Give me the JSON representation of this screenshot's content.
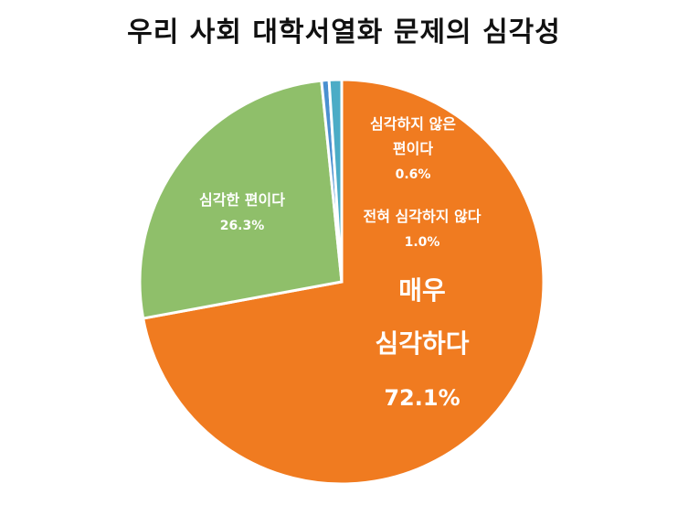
{
  "chart_data": {
    "type": "pie",
    "title": "우리 사회 대학서열화 문제의 심각성",
    "slices": [
      {
        "label_lines": [
          "매우",
          "심각하다"
        ],
        "percent_label": "72.1%",
        "value": 72.1,
        "color": "#F07B20",
        "emphasis": true
      },
      {
        "label_lines": [
          "심각한 편이다"
        ],
        "percent_label": "26.3%",
        "value": 26.3,
        "color": "#8FBF6A",
        "emphasis": false
      },
      {
        "label_lines": [
          "심각하지 않은",
          "편이다"
        ],
        "percent_label": "0.6%",
        "value": 0.6,
        "color": "#4A90D0",
        "emphasis": false
      },
      {
        "label_lines": [
          "전혀 심각하지 않다"
        ],
        "percent_label": "1.0%",
        "value": 1.0,
        "color": "#4BACC6",
        "emphasis": false
      }
    ],
    "start_angle_deg": 0,
    "direction": "clockwise",
    "legend": "none"
  }
}
